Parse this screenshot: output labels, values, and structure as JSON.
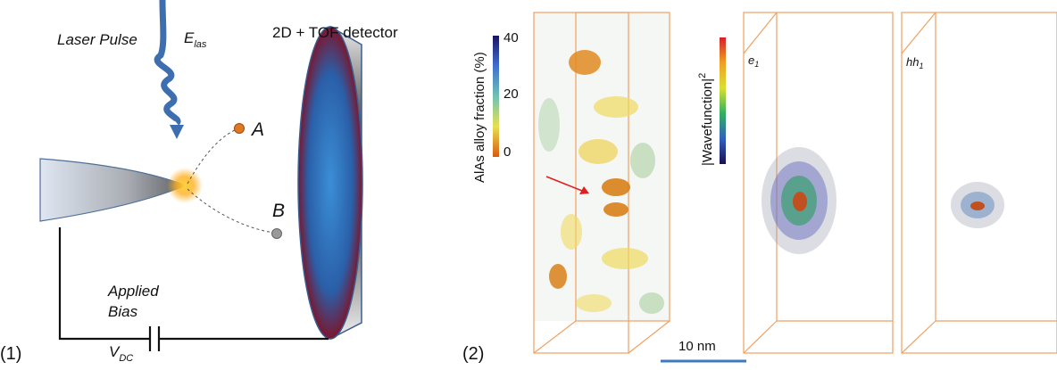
{
  "panel1": {
    "label": "(1)",
    "laser": {
      "name": "Laser Pulse",
      "symbol": "E",
      "subscript": "las"
    },
    "detector": "2D + TOF detector",
    "ion_a": "A",
    "ion_b": "B",
    "bias": {
      "line1": "Applied",
      "line2": "Bias",
      "symbol": "V",
      "subscript": "DC"
    }
  },
  "panel2": {
    "label": "(2)",
    "alloy_colorbar": {
      "title": "AlAs alloy fraction (%)",
      "ticks": [
        40,
        20,
        0
      ]
    },
    "wave_colorbar": {
      "title": "|Wavefunction|",
      "power": "2"
    },
    "states": [
      {
        "symbol": "e",
        "subscript": "1"
      },
      {
        "symbol": "hh",
        "subscript": "1"
      }
    ],
    "scale_bar": "10 nm"
  }
}
